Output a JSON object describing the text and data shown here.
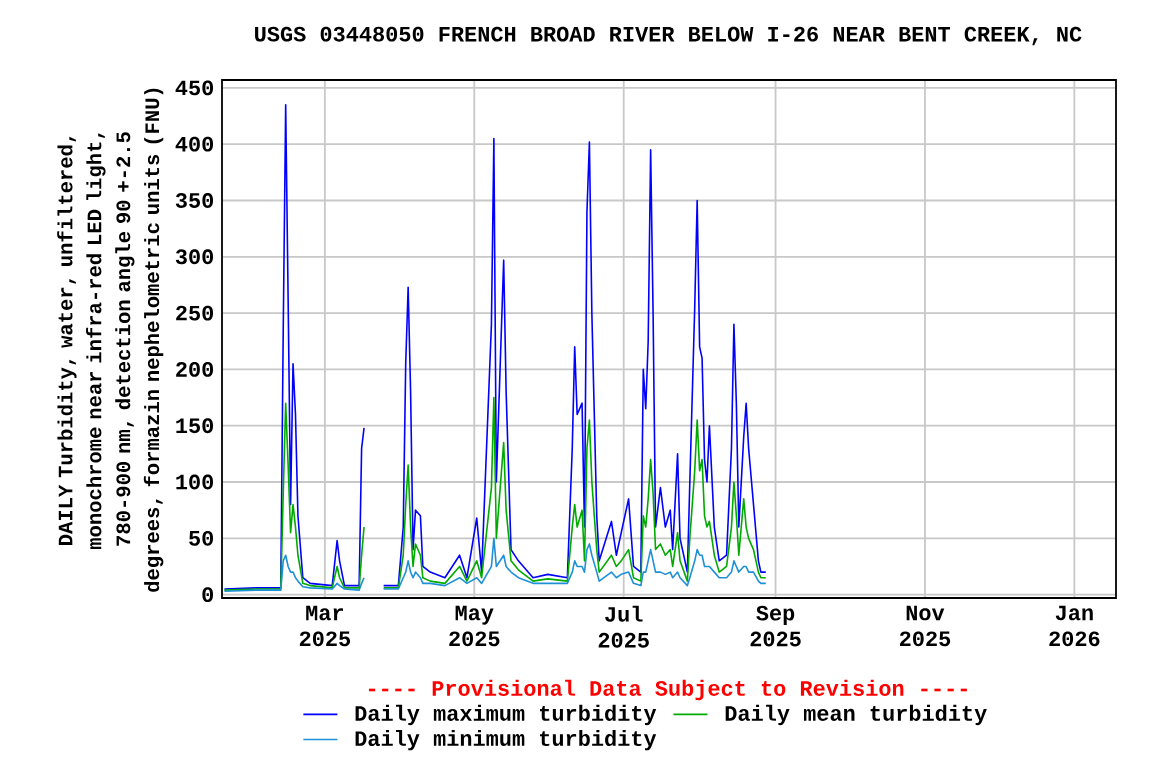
{
  "chart_data": {
    "type": "line",
    "title": "USGS 03448050 FRENCH BROAD RIVER BELOW I-26 NEAR BENT CREEK, NC",
    "ylabel": "DAILY Turbidity, water, unfiltered, monochrome near infra-red LED light, 780-900 nm, detection angle 90 +-2.5 degrees, formazin nephelometric units (FNU)",
    "annotations": [
      "---- Provisional Data Subject to Revision ----"
    ],
    "x": [
      "2025-01-19",
      "2025-02-01",
      "2025-02-11",
      "2025-02-12",
      "2025-02-13",
      "2025-02-14",
      "2025-02-15",
      "2025-02-16",
      "2025-02-17",
      "2025-02-18",
      "2025-02-20",
      "2025-02-23",
      "2025-03-04",
      "2025-03-06",
      "2025-03-07",
      "2025-03-09",
      "2025-03-15",
      "2025-03-16",
      "2025-03-17",
      "2025-03-18",
      "2025-03-25",
      "2025-03-31",
      "2025-04-02",
      "2025-04-03",
      "2025-04-04",
      "2025-04-05",
      "2025-04-06",
      "2025-04-07",
      "2025-04-09",
      "2025-04-10",
      "2025-04-13",
      "2025-04-19",
      "2025-04-25",
      "2025-04-28",
      "2025-05-02",
      "2025-05-04",
      "2025-05-08",
      "2025-05-09",
      "2025-05-10",
      "2025-05-13",
      "2025-05-14",
      "2025-05-16",
      "2025-05-19",
      "2025-05-25",
      "2025-05-31",
      "2025-06-08",
      "2025-06-10",
      "2025-06-11",
      "2025-06-12",
      "2025-06-14",
      "2025-06-15",
      "2025-06-16",
      "2025-06-17",
      "2025-06-18",
      "2025-06-20",
      "2025-06-21",
      "2025-06-26",
      "2025-06-28",
      "2025-06-30",
      "2025-07-03",
      "2025-07-05",
      "2025-07-08",
      "2025-07-09",
      "2025-07-10",
      "2025-07-11",
      "2025-07-12",
      "2025-07-13",
      "2025-07-14",
      "2025-07-16",
      "2025-07-18",
      "2025-07-20",
      "2025-07-21",
      "2025-07-23",
      "2025-07-24",
      "2025-07-27",
      "2025-07-28",
      "2025-07-30",
      "2025-07-31",
      "2025-08-01",
      "2025-08-02",
      "2025-08-03",
      "2025-08-04",
      "2025-08-05",
      "2025-08-07",
      "2025-08-09",
      "2025-08-12",
      "2025-08-14",
      "2025-08-15",
      "2025-08-16",
      "2025-08-17",
      "2025-08-19",
      "2025-08-20",
      "2025-08-21",
      "2025-08-23",
      "2025-08-25",
      "2025-08-26",
      "2025-08-28"
    ],
    "series": [
      {
        "name": "Daily maximum turbidity",
        "color": "#0000ff",
        "values": [
          5,
          6,
          6,
          235,
          435,
          262,
          80,
          205,
          160,
          70,
          15,
          10,
          8,
          48,
          30,
          8,
          8,
          130,
          148,
          null,
          8,
          8,
          60,
          205,
          273,
          180,
          40,
          75,
          70,
          25,
          20,
          15,
          35,
          15,
          68,
          20,
          240,
          405,
          100,
          297,
          180,
          40,
          30,
          15,
          18,
          15,
          130,
          220,
          160,
          170,
          60,
          340,
          402,
          250,
          70,
          30,
          65,
          35,
          55,
          85,
          25,
          20,
          200,
          165,
          225,
          395,
          250,
          60,
          95,
          60,
          75,
          40,
          125,
          50,
          20,
          100,
          255,
          350,
          220,
          210,
          120,
          100,
          150,
          60,
          30,
          35,
          130,
          240,
          170,
          60,
          140,
          170,
          130,
          80,
          30,
          20,
          20
        ]
      },
      {
        "name": "Daily mean turbidity",
        "color": "#00aa00",
        "values": [
          4,
          5,
          5,
          90,
          170,
          115,
          55,
          80,
          60,
          35,
          10,
          8,
          6,
          25,
          15,
          6,
          6,
          35,
          60,
          null,
          6,
          6,
          35,
          80,
          115,
          60,
          25,
          45,
          35,
          15,
          12,
          10,
          25,
          12,
          30,
          15,
          95,
          175,
          50,
          135,
          75,
          30,
          22,
          12,
          14,
          12,
          60,
          80,
          60,
          75,
          30,
          130,
          155,
          100,
          40,
          20,
          35,
          25,
          30,
          40,
          15,
          12,
          70,
          60,
          85,
          120,
          90,
          40,
          45,
          35,
          40,
          25,
          55,
          30,
          12,
          50,
          110,
          155,
          110,
          120,
          70,
          60,
          65,
          35,
          20,
          25,
          60,
          100,
          70,
          35,
          85,
          60,
          50,
          40,
          20,
          15,
          15
        ]
      },
      {
        "name": "Daily minimum turbidity",
        "color": "#1e90d8",
        "values": [
          3,
          4,
          4,
          30,
          35,
          25,
          20,
          20,
          15,
          12,
          7,
          6,
          5,
          10,
          8,
          5,
          4,
          10,
          15,
          null,
          5,
          5,
          15,
          20,
          30,
          20,
          15,
          20,
          15,
          10,
          10,
          8,
          15,
          10,
          15,
          10,
          25,
          50,
          25,
          35,
          25,
          20,
          15,
          10,
          10,
          10,
          20,
          30,
          25,
          25,
          20,
          40,
          45,
          35,
          20,
          12,
          20,
          15,
          18,
          20,
          10,
          8,
          20,
          20,
          30,
          40,
          30,
          20,
          20,
          18,
          20,
          15,
          20,
          15,
          8,
          15,
          30,
          40,
          35,
          35,
          25,
          25,
          25,
          20,
          15,
          15,
          20,
          30,
          25,
          20,
          25,
          25,
          20,
          20,
          12,
          10,
          10
        ]
      }
    ],
    "xlim": [
      "2025-01-18",
      "2026-01-18"
    ],
    "ylim": [
      -3,
      457
    ],
    "xticks": [
      {
        "value": "2025-03-01",
        "label": "Mar 2025"
      },
      {
        "value": "2025-05-01",
        "label": "May 2025"
      },
      {
        "value": "2025-07-01",
        "label": "Jul 2025"
      },
      {
        "value": "2025-09-01",
        "label": "Sep 2025"
      },
      {
        "value": "2025-11-01",
        "label": "Nov 2025"
      },
      {
        "value": "2026-01-01",
        "label": "Jan 2026"
      }
    ],
    "yticks": [
      0,
      50,
      100,
      150,
      200,
      250,
      300,
      350,
      400,
      450
    ],
    "grid": true,
    "legend": "bottom"
  }
}
